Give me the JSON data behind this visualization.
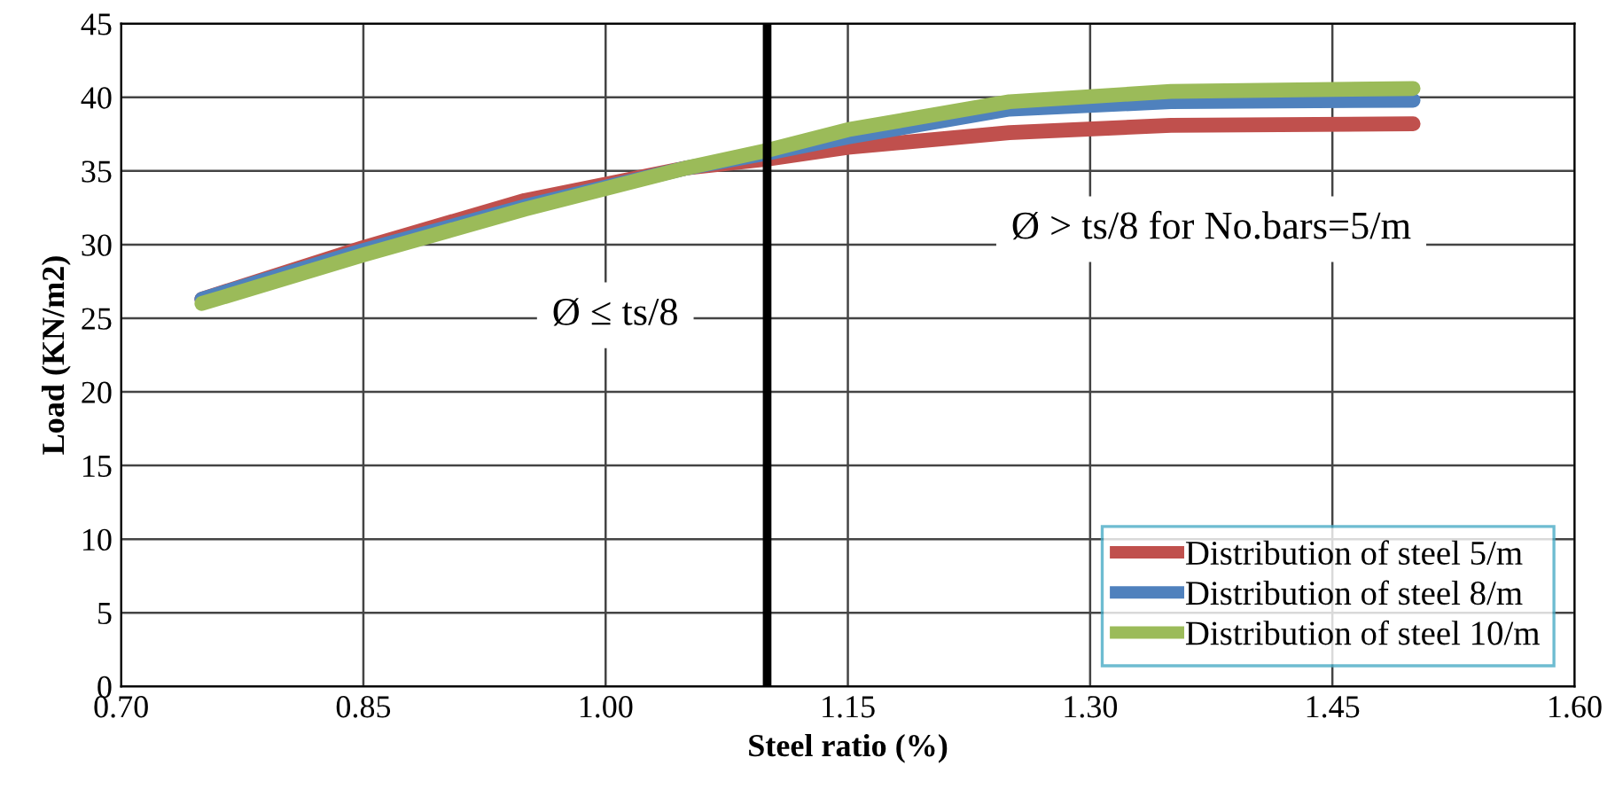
{
  "chart_data": {
    "type": "line",
    "xlabel": "Steel ratio (%)",
    "ylabel": "Load (KN/m2)",
    "xlim": [
      0.7,
      1.6
    ],
    "xticks": [
      {
        "value": 0.7,
        "label": "0.70"
      },
      0.85,
      {
        "value": 1.0,
        "label": "1.00"
      },
      1.15,
      {
        "value": 1.3,
        "label": "1.30"
      },
      1.45,
      {
        "value": 1.6,
        "label": "1.60"
      }
    ],
    "ylim": [
      0,
      45
    ],
    "yticks": [
      0,
      5,
      10,
      15,
      20,
      25,
      30,
      35,
      40,
      45
    ],
    "grid": true,
    "legend": "bottom right",
    "marker": "none",
    "line_style": "solid",
    "x": [
      0.75,
      0.85,
      0.95,
      1.05,
      1.1,
      1.15,
      1.25,
      1.35,
      1.5
    ],
    "series": [
      {
        "name": "Distribution of steel 5/m",
        "color": "#c0504d",
        "values": [
          26.3,
          29.8,
          33.0,
          35.2,
          35.8,
          36.6,
          37.6,
          38.1,
          38.2
        ]
      },
      {
        "name": "Distribution of steel 8/m",
        "color": "#4f81bd",
        "values": [
          26.3,
          29.6,
          32.6,
          35.2,
          36.2,
          37.3,
          39.2,
          39.7,
          39.8
        ]
      },
      {
        "name": "Distribution of steel 10/m",
        "color": "#9bbb59",
        "values": [
          26.0,
          29.3,
          32.4,
          35.2,
          36.4,
          37.8,
          39.7,
          40.4,
          40.6
        ]
      }
    ],
    "ref_lines": [
      {
        "axis": "x",
        "value": 1.1,
        "color": "#000000"
      }
    ],
    "annotations": [
      "Ø ≤ ts/8",
      "Ø > ts/8 for No.bars=5/m"
    ]
  }
}
